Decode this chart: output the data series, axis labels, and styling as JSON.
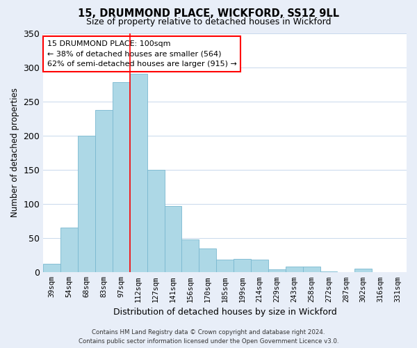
{
  "title1": "15, DRUMMOND PLACE, WICKFORD, SS12 9LL",
  "title2": "Size of property relative to detached houses in Wickford",
  "xlabel": "Distribution of detached houses by size in Wickford",
  "ylabel": "Number of detached properties",
  "categories": [
    "39sqm",
    "54sqm",
    "68sqm",
    "83sqm",
    "97sqm",
    "112sqm",
    "127sqm",
    "141sqm",
    "156sqm",
    "170sqm",
    "185sqm",
    "199sqm",
    "214sqm",
    "229sqm",
    "243sqm",
    "258sqm",
    "272sqm",
    "287sqm",
    "302sqm",
    "316sqm",
    "331sqm"
  ],
  "values": [
    13,
    65,
    200,
    238,
    278,
    290,
    150,
    97,
    48,
    35,
    19,
    20,
    19,
    4,
    8,
    8,
    1,
    0,
    5,
    0,
    0
  ],
  "bar_color": "#add8e6",
  "bar_edge_color": "#7ab8d0",
  "ylim": [
    0,
    350
  ],
  "yticks": [
    0,
    50,
    100,
    150,
    200,
    250,
    300,
    350
  ],
  "annotation_line1": "15 DRUMMOND PLACE: 100sqm",
  "annotation_line2": "← 38% of detached houses are smaller (564)",
  "annotation_line3": "62% of semi-detached houses are larger (915) →",
  "annotation_box_color": "white",
  "annotation_box_edge_color": "red",
  "footer_line1": "Contains HM Land Registry data © Crown copyright and database right 2024.",
  "footer_line2": "Contains public sector information licensed under the Open Government Licence v3.0.",
  "bg_color": "#e8eef8",
  "plot_bg_color": "white",
  "grid_color": "#c8d8ec",
  "vline_index": 4,
  "vline_color": "red"
}
